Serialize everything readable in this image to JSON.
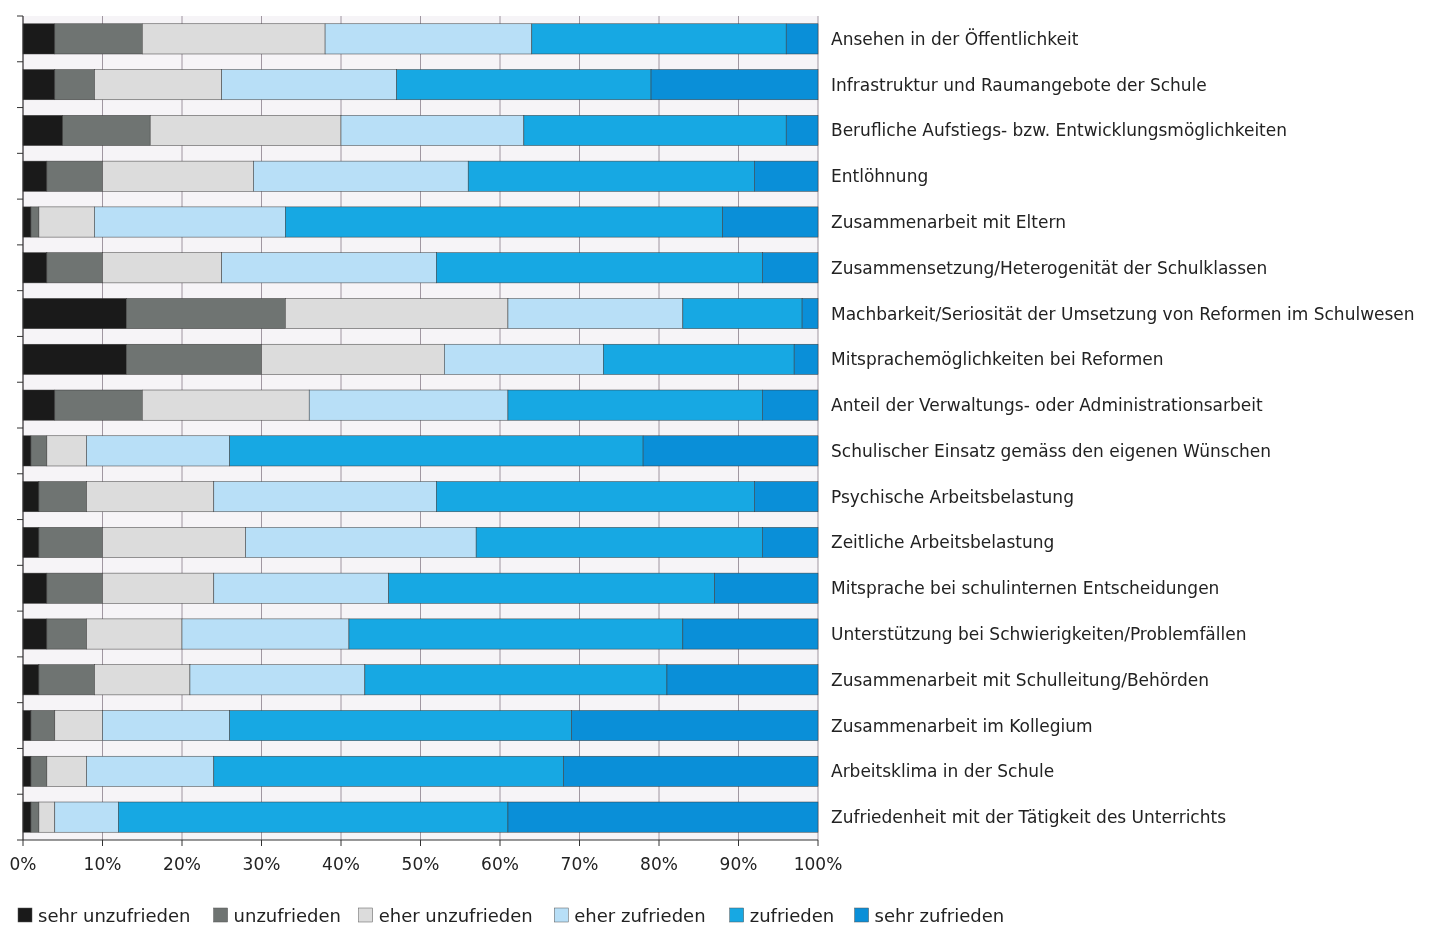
{
  "chart_data": {
    "type": "bar",
    "orientation": "horizontal",
    "stacked": true,
    "categories": [
      "Ansehen in der Öffentlichkeit",
      "Infrastruktur und Raumangebote der Schule",
      "Berufliche Aufstiegs- bzw. Entwicklungsmöglichkeiten",
      "Entlöhnung",
      "Zusammenarbeit mit Eltern",
      "Zusammensetzung/Heterogenität der Schulklassen",
      "Machbarkeit/Seriosität der Umsetzung von Reformen im Schulwesen",
      "Mitsprachemöglichkeiten bei Reformen",
      "Anteil der Verwaltungs- oder Administrationsarbeit",
      "Schulischer Einsatz gemäss den eigenen Wünschen",
      "Psychische Arbeitsbelastung",
      "Zeitliche Arbeitsbelastung",
      "Mitsprache bei schulinternen Entscheidungen",
      "Unterstützung bei Schwierigkeiten/Problemfällen",
      "Zusammenarbeit mit Schulleitung/Behörden",
      "Zusammenarbeit im Kollegium",
      "Arbeitsklima in der Schule",
      "Zufriedenheit mit der Tätigkeit des Unterrichts"
    ],
    "series": [
      {
        "name": "sehr unzufrieden",
        "color": "#1a1a1a",
        "values": [
          4,
          4,
          5,
          3,
          1,
          3,
          13,
          13,
          4,
          1,
          2,
          2,
          3,
          3,
          2,
          1,
          1,
          1
        ]
      },
      {
        "name": "unzufrieden",
        "color": "#6f7472",
        "values": [
          11,
          5,
          11,
          7,
          1,
          7,
          20,
          17,
          11,
          2,
          6,
          8,
          7,
          5,
          7,
          3,
          2,
          1
        ]
      },
      {
        "name": "eher unzufrieden",
        "color": "#dcdcdc",
        "values": [
          23,
          16,
          24,
          19,
          7,
          15,
          28,
          23,
          21,
          5,
          16,
          18,
          14,
          12,
          12,
          6,
          5,
          2
        ]
      },
      {
        "name": "eher zufrieden",
        "color": "#b8dff7",
        "values": [
          26,
          22,
          23,
          27,
          24,
          27,
          22,
          20,
          25,
          18,
          28,
          29,
          22,
          21,
          22,
          16,
          16,
          8
        ]
      },
      {
        "name": "zufrieden",
        "color": "#17a8e3",
        "values": [
          32,
          32,
          33,
          36,
          55,
          41,
          15,
          24,
          32,
          52,
          40,
          36,
          41,
          42,
          38,
          43,
          44,
          49
        ]
      },
      {
        "name": "sehr zufrieden",
        "color": "#0a8fd8",
        "values": [
          4,
          21,
          4,
          8,
          12,
          7,
          2,
          3,
          7,
          22,
          8,
          7,
          13,
          17,
          19,
          31,
          32,
          39
        ]
      }
    ],
    "xlim": [
      0,
      100
    ],
    "xticks": [
      {
        "value": 0,
        "label": "0%"
      },
      {
        "value": 10,
        "label": "10%"
      },
      {
        "value": 20,
        "label": "20%"
      },
      {
        "value": 30,
        "label": "30%"
      },
      {
        "value": 40,
        "label": "40%"
      },
      {
        "value": 50,
        "label": "50%"
      },
      {
        "value": 60,
        "label": "60%"
      },
      {
        "value": 70,
        "label": "70%"
      },
      {
        "value": 80,
        "label": "80%"
      },
      {
        "value": 90,
        "label": "90%"
      },
      {
        "value": 100,
        "label": "100%"
      }
    ],
    "grid": "x",
    "legend": "bottom"
  }
}
